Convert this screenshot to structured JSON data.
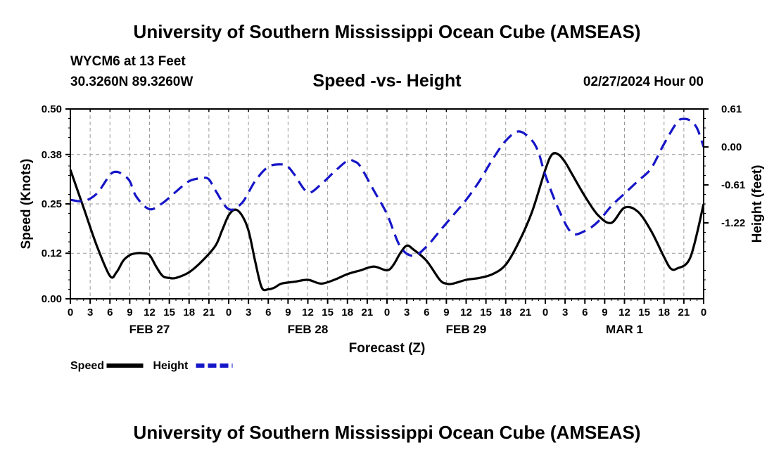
{
  "header": {
    "main_title": "University of Southern Mississippi Ocean Cube (AMSEAS)",
    "station": "WYCM6 at 13 Feet",
    "coordinates": "30.3260N  89.3260W",
    "subtitle": "Speed -vs- Height",
    "datetime": "02/27/2024 Hour 00"
  },
  "footer": {
    "title": "University of Southern Mississippi Ocean Cube (AMSEAS)"
  },
  "chart_data": {
    "type": "line",
    "title": "Speed -vs- Height",
    "xlabel": "Forecast (Z)",
    "ylabel": "Speed (Knots)",
    "y2label": "Height (feet)",
    "x_unit": "forecast hour",
    "xlim": [
      0,
      96
    ],
    "ylim": [
      0,
      0.5
    ],
    "y2lim": [
      -2.44,
      0.61
    ],
    "x_ticks": [
      0,
      3,
      6,
      9,
      12,
      15,
      18,
      21,
      24,
      27,
      30,
      33,
      36,
      39,
      42,
      45,
      48,
      51,
      54,
      57,
      60,
      63,
      66,
      69,
      72,
      75,
      78,
      81,
      84,
      87,
      90,
      93,
      96
    ],
    "x_tick_labels": [
      "0",
      "3",
      "6",
      "9",
      "12",
      "15",
      "18",
      "21",
      "0",
      "3",
      "6",
      "9",
      "12",
      "15",
      "18",
      "21",
      "0",
      "3",
      "6",
      "9",
      "12",
      "15",
      "18",
      "21",
      "0",
      "3",
      "6",
      "9",
      "12",
      "15",
      "18",
      "21",
      "0"
    ],
    "day_labels": [
      {
        "label": "FEB 27",
        "hour": 12
      },
      {
        "label": "FEB 28",
        "hour": 36
      },
      {
        "label": "FEB 29",
        "hour": 60
      },
      {
        "label": "MAR 1",
        "hour": 84
      }
    ],
    "y_ticks": [
      0.0,
      0.12,
      0.25,
      0.38,
      0.5
    ],
    "y_tick_labels": [
      "0.00",
      "0.12",
      "0.25",
      "0.38",
      "0.50"
    ],
    "y2_ticks": [
      0.61,
      0.0,
      -0.61,
      -1.22
    ],
    "y2_tick_labels": [
      "0.61",
      "0.00",
      "-0.61",
      "-1.22"
    ],
    "grid": true,
    "legend_position": "bottom-left",
    "series": [
      {
        "name": "Speed",
        "axis": "left",
        "color": "#000000",
        "dash": "solid",
        "x": [
          0,
          2,
          4,
          6,
          7,
          8,
          9,
          10,
          11,
          12,
          13,
          14,
          15,
          16,
          18,
          20,
          22,
          23,
          24,
          25,
          26,
          27,
          28,
          29,
          30,
          31,
          32,
          34,
          36,
          38,
          40,
          42,
          44,
          46,
          48,
          49,
          50,
          51,
          52,
          54,
          56,
          57,
          58,
          60,
          62,
          64,
          66,
          68,
          70,
          72,
          73,
          74,
          75,
          76,
          78,
          80,
          82,
          84,
          86,
          88,
          90,
          91,
          92,
          94,
          96
        ],
        "values": [
          0.34,
          0.24,
          0.14,
          0.06,
          0.07,
          0.1,
          0.115,
          0.12,
          0.12,
          0.115,
          0.085,
          0.06,
          0.055,
          0.055,
          0.07,
          0.1,
          0.14,
          0.18,
          0.22,
          0.235,
          0.22,
          0.18,
          0.1,
          0.03,
          0.025,
          0.03,
          0.04,
          0.045,
          0.05,
          0.04,
          0.05,
          0.065,
          0.075,
          0.085,
          0.075,
          0.09,
          0.12,
          0.14,
          0.13,
          0.1,
          0.05,
          0.04,
          0.04,
          0.05,
          0.055,
          0.065,
          0.09,
          0.15,
          0.23,
          0.34,
          0.38,
          0.38,
          0.36,
          0.33,
          0.27,
          0.22,
          0.2,
          0.24,
          0.23,
          0.18,
          0.11,
          0.08,
          0.08,
          0.11,
          0.25
        ]
      },
      {
        "name": "Height",
        "axis": "right",
        "color": "#1515c8",
        "dash": "dashed",
        "x": [
          0,
          2,
          4,
          6,
          7,
          8,
          9,
          10,
          12,
          14,
          16,
          18,
          20,
          21,
          22,
          24,
          26,
          28,
          30,
          32,
          33,
          34,
          36,
          38,
          40,
          42,
          43,
          44,
          46,
          48,
          50,
          52,
          54,
          56,
          58,
          60,
          62,
          64,
          66,
          68,
          70,
          71,
          72,
          74,
          76,
          78,
          80,
          82,
          84,
          86,
          88,
          90,
          92,
          93,
          94,
          95,
          96
        ],
        "values": [
          -0.85,
          -0.87,
          -0.75,
          -0.45,
          -0.4,
          -0.45,
          -0.55,
          -0.8,
          -1.0,
          -0.9,
          -0.72,
          -0.55,
          -0.5,
          -0.52,
          -0.7,
          -1.0,
          -0.9,
          -0.55,
          -0.32,
          -0.28,
          -0.32,
          -0.45,
          -0.73,
          -0.6,
          -0.4,
          -0.22,
          -0.23,
          -0.32,
          -0.7,
          -1.08,
          -1.6,
          -1.75,
          -1.6,
          -1.35,
          -1.1,
          -0.85,
          -0.55,
          -0.2,
          0.1,
          0.25,
          0.1,
          -0.1,
          -0.45,
          -1.0,
          -1.38,
          -1.35,
          -1.2,
          -0.95,
          -0.75,
          -0.55,
          -0.35,
          0.05,
          0.4,
          0.45,
          0.42,
          0.3,
          0.0
        ]
      }
    ]
  }
}
